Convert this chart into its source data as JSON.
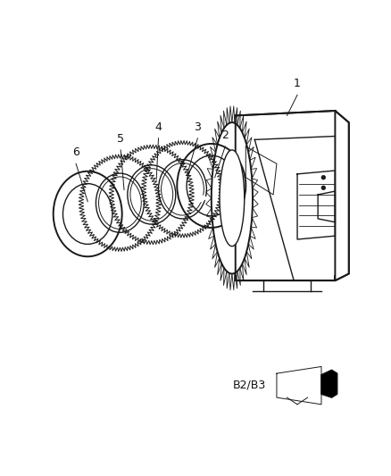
{
  "background_color": "#ffffff",
  "line_color": "#1a1a1a",
  "label_color": "#111111",
  "figsize": [
    4.38,
    5.33
  ],
  "dpi": 100,
  "b2b3_label": "B2/B3"
}
